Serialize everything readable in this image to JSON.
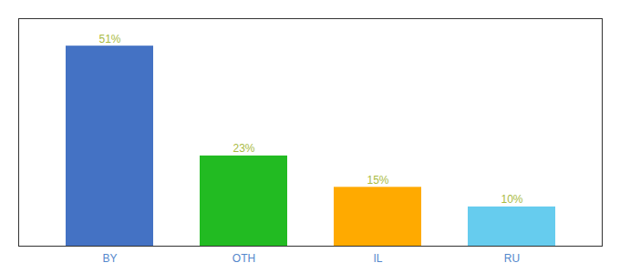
{
  "chart_data": {
    "type": "bar",
    "categories": [
      "BY",
      "OTH",
      "IL",
      "RU"
    ],
    "values": [
      51,
      23,
      15,
      10
    ],
    "value_labels": [
      "51%",
      "23%",
      "15%",
      "10%"
    ],
    "colors": [
      "#4472c4",
      "#22bb22",
      "#ffaa00",
      "#66ccee"
    ],
    "ylim": [
      0,
      58
    ],
    "data_labels": true,
    "tick_labels": "x"
  }
}
